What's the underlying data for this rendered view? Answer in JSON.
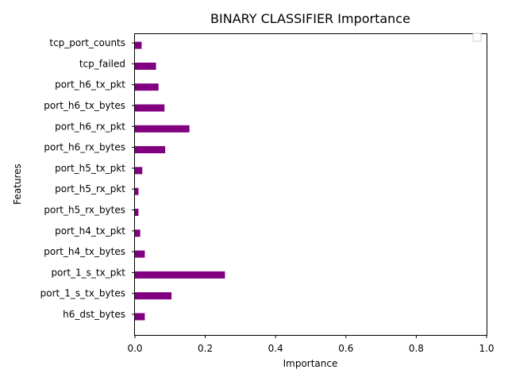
{
  "chart_data": {
    "type": "bar",
    "orientation": "horizontal",
    "title": "BINARY CLASSIFIER Importance",
    "xlabel": "Importance",
    "ylabel": "Features",
    "xlim": [
      0,
      1
    ],
    "xticks": [
      0.0,
      0.2,
      0.4,
      0.6,
      0.8,
      1.0
    ],
    "xtick_labels": [
      "0.0",
      "0.2",
      "0.4",
      "0.6",
      "0.8",
      "1.0"
    ],
    "categories": [
      "h6_dst_bytes",
      "port_1_s_tx_bytes",
      "port_1_s_tx_pkt",
      "port_h4_tx_bytes",
      "port_h4_tx_pkt",
      "port_h5_rx_bytes",
      "port_h5_rx_pkt",
      "port_h5_tx_pkt",
      "port_h6_rx_bytes",
      "port_h6_rx_pkt",
      "port_h6_tx_bytes",
      "port_h6_tx_pkt",
      "tcp_failed",
      "tcp_port_counts"
    ],
    "values": [
      0.028,
      0.104,
      0.256,
      0.028,
      0.015,
      0.01,
      0.01,
      0.021,
      0.086,
      0.155,
      0.084,
      0.067,
      0.06,
      0.019
    ],
    "bar_color": "#800080",
    "grid": false,
    "legend": "top-right"
  }
}
